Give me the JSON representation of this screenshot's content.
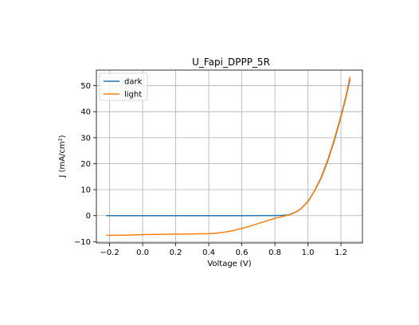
{
  "chart_data": {
    "type": "line",
    "title": "U_Fapi_DPPP_5R",
    "xlabel": "Voltage (V)",
    "ylabel": "J (mA/cm²)",
    "xlim": [
      -0.28,
      1.33
    ],
    "ylim": [
      -10.5,
      56
    ],
    "xticks": [
      -0.2,
      0.0,
      0.2,
      0.4,
      0.6,
      0.8,
      1.0,
      1.2
    ],
    "xtick_labels": [
      "−0.2",
      "0.0",
      "0.2",
      "0.4",
      "0.6",
      "0.8",
      "1.0",
      "1.2"
    ],
    "yticks": [
      -10,
      0,
      10,
      20,
      30,
      40,
      50
    ],
    "ytick_labels": [
      "−10",
      "0",
      "10",
      "20",
      "30",
      "40",
      "50"
    ],
    "grid": true,
    "legend_position": "top-left",
    "series": [
      {
        "name": "dark",
        "color": "#1f77b4",
        "points": [
          [
            -0.22,
            0
          ],
          [
            0.0,
            0
          ],
          [
            0.2,
            0
          ],
          [
            0.4,
            0
          ],
          [
            0.6,
            0
          ],
          [
            0.8,
            0.05
          ],
          [
            0.85,
            0.1
          ],
          [
            0.88,
            0.3
          ],
          [
            0.9,
            0.7
          ],
          [
            0.93,
            1.5
          ],
          [
            0.96,
            2.8
          ],
          [
            1.0,
            5.5
          ],
          [
            1.04,
            9.5
          ],
          [
            1.08,
            14.5
          ],
          [
            1.12,
            21
          ],
          [
            1.16,
            29
          ],
          [
            1.2,
            38
          ],
          [
            1.23,
            45.5
          ],
          [
            1.255,
            52.5
          ]
        ]
      },
      {
        "name": "light",
        "color": "#ff7f0e",
        "points": [
          [
            -0.22,
            -7.6
          ],
          [
            -0.1,
            -7.5
          ],
          [
            0.0,
            -7.3
          ],
          [
            0.1,
            -7.2
          ],
          [
            0.2,
            -7.1
          ],
          [
            0.3,
            -7.05
          ],
          [
            0.4,
            -6.9
          ],
          [
            0.45,
            -6.7
          ],
          [
            0.5,
            -6.3
          ],
          [
            0.55,
            -5.7
          ],
          [
            0.6,
            -4.9
          ],
          [
            0.65,
            -4.0
          ],
          [
            0.7,
            -3.0
          ],
          [
            0.75,
            -2.0
          ],
          [
            0.8,
            -1.0
          ],
          [
            0.83,
            -0.6
          ],
          [
            0.86,
            -0.1
          ],
          [
            0.9,
            0.6
          ],
          [
            0.93,
            1.5
          ],
          [
            0.96,
            2.8
          ],
          [
            1.0,
            5.4
          ],
          [
            1.04,
            9.6
          ],
          [
            1.08,
            14.8
          ],
          [
            1.12,
            21.5
          ],
          [
            1.16,
            29.5
          ],
          [
            1.2,
            38.5
          ],
          [
            1.23,
            46
          ],
          [
            1.255,
            53.5
          ]
        ]
      }
    ]
  }
}
